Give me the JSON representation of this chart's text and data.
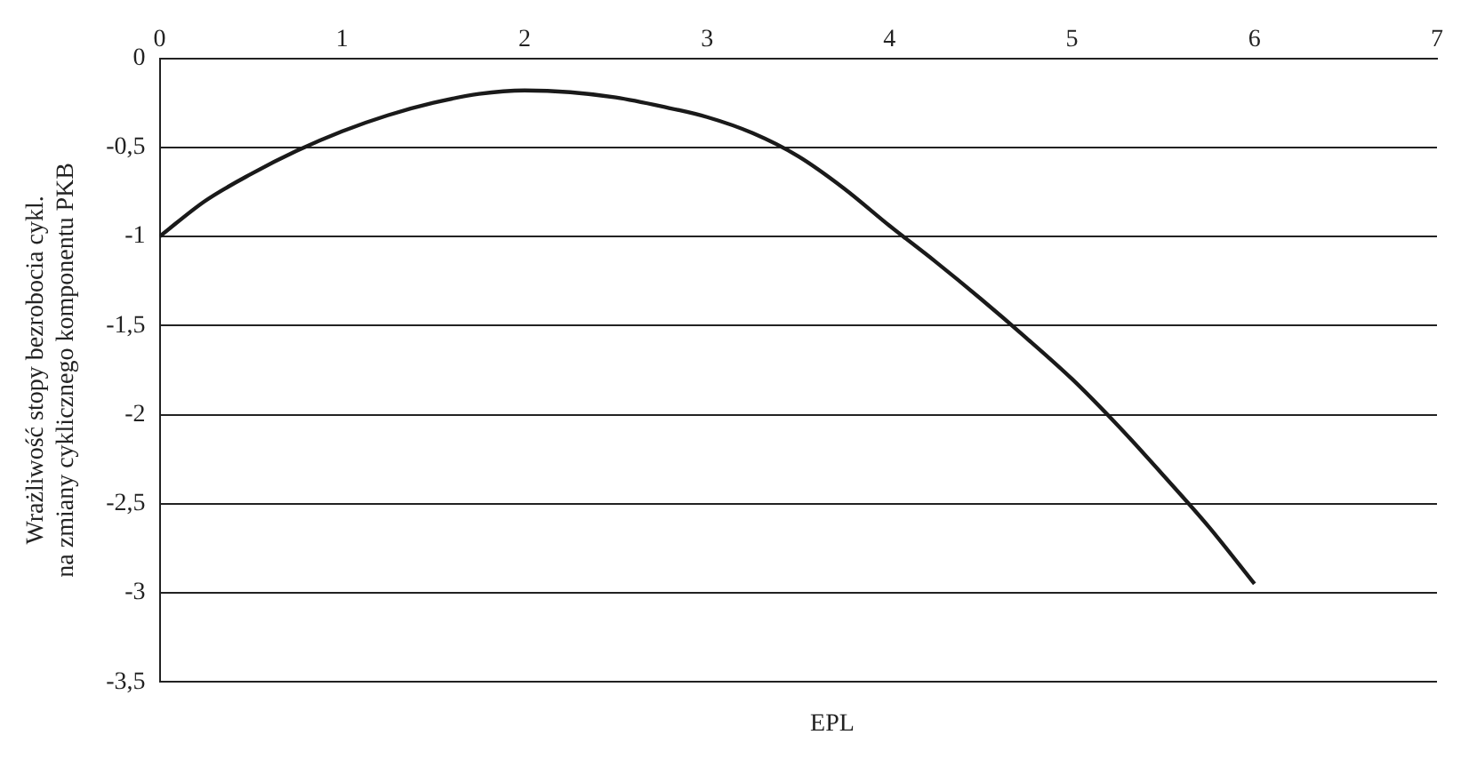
{
  "chart_data": {
    "type": "line",
    "xlabel": "EPL",
    "ylabel": "Wrażliwość stopy bezrobocia cykl.\nna zmiany cyklicznego komponentu PKB",
    "x": [
      0,
      0.25,
      0.5,
      0.75,
      1,
      1.25,
      1.5,
      1.75,
      2,
      2.25,
      2.5,
      2.75,
      3,
      3.25,
      3.5,
      3.75,
      4,
      4.25,
      4.5,
      4.75,
      5,
      5.25,
      5.5,
      5.75,
      6
    ],
    "series": [
      {
        "color": "#1a1a1a",
        "values": [
          -1,
          -0.8,
          -0.65,
          -0.52,
          -0.41,
          -0.32,
          -0.25,
          -0.2,
          -0.18,
          -0.19,
          -0.22,
          -0.27,
          -0.33,
          -0.42,
          -0.55,
          -0.73,
          -0.94,
          -1.14,
          -1.35,
          -1.57,
          -1.8,
          -2.06,
          -2.34,
          -2.63,
          -2.95
        ]
      }
    ],
    "xlim": [
      0,
      7
    ],
    "xticks": [
      0,
      1,
      2,
      3,
      4,
      5,
      6,
      7
    ],
    "ylim": [
      -3.5,
      0
    ],
    "yticks": [
      {
        "value": -3.5,
        "label": "-3,5"
      },
      -3,
      {
        "value": -2.5,
        "label": "-2,5"
      },
      -2,
      {
        "value": -1.5,
        "label": "-1,5"
      },
      -1,
      {
        "value": -0.5,
        "label": "-0,5"
      },
      0
    ],
    "grid": "y",
    "legend": false,
    "marker": "none",
    "line_style": "solid"
  }
}
